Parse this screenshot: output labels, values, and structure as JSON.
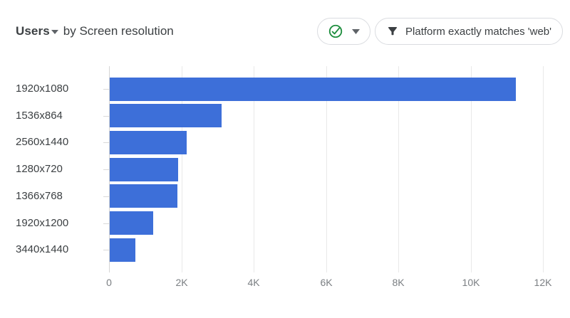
{
  "header": {
    "metric": "Users",
    "title_rest": "by Screen resolution",
    "status_button": {
      "icon": "check-circle-icon",
      "caret_icon": "caret-down-icon"
    },
    "filter_chip": {
      "icon": "filter-icon",
      "label": "Platform exactly matches 'web'"
    }
  },
  "colors": {
    "bar": "#3d6fd9",
    "title_text": "#3c4043",
    "category_label": "#3c4043",
    "axis_label": "#7b7f83",
    "gridline": "#e9e9e9",
    "axis_line": "#d5d5d5",
    "pill_border": "#dadce0",
    "check_green": "#1e8e3e",
    "icon_gray": "#5f6368"
  },
  "chart_data": {
    "type": "bar",
    "orientation": "horizontal",
    "title": "Users by Screen resolution",
    "categories": [
      "1920x1080",
      "1536x864",
      "2560x1440",
      "1280x720",
      "1366x768",
      "1920x1200",
      "3440x1440"
    ],
    "values": [
      11230,
      3090,
      2130,
      1890,
      1880,
      1200,
      700
    ],
    "x_ticks": [
      "0",
      "2K",
      "4K",
      "6K",
      "8K",
      "10K",
      "12K"
    ],
    "xlim": [
      0,
      12000
    ],
    "xlabel": "",
    "ylabel": "",
    "grid": true,
    "legend": false
  }
}
